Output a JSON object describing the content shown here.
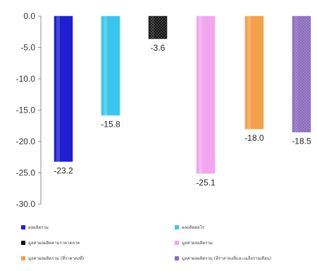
{
  "chart_data": {
    "type": "bar",
    "ylim": [
      -30,
      0
    ],
    "yticks": [
      "0.0",
      "-5.0",
      "-10.0",
      "-15.0",
      "-20.0",
      "-25.0",
      "-30.0"
    ],
    "grid": false,
    "legend_position": "bottom",
    "series": [
      {
        "name": "ผลผลิตรวม",
        "value": -23.2,
        "label": "-23.2",
        "color": "#1f1fd1",
        "pattern": "solid"
      },
      {
        "name": "ผลผลิตต่อไร่",
        "value": -15.8,
        "label": "-15.8",
        "color": "#39c6ec",
        "pattern": "solid"
      },
      {
        "name": "มูลค่าผลผลิตตามราคาตลาด",
        "value": -3.6,
        "label": "-3.6",
        "color": "#111111",
        "pattern": "dots"
      },
      {
        "name": "มูลค่าผลผลิตรวม",
        "value": -25.1,
        "label": "-25.1",
        "color": "#f2a6f0",
        "pattern": "solid"
      },
      {
        "name": "มูลค่าผลผลิตรวม (ที่ราคาคงที่)",
        "value": -18.0,
        "label": "-18.0",
        "color": "#f5a04a",
        "pattern": "solid"
      },
      {
        "name": "มูลค่าผลผลิตรวม (ที่ราคาคงที่และเฉลี่ยรายเดือน)",
        "value": -18.5,
        "label": "-18.5",
        "color": "#8b6bbd",
        "pattern": "dots"
      }
    ]
  }
}
